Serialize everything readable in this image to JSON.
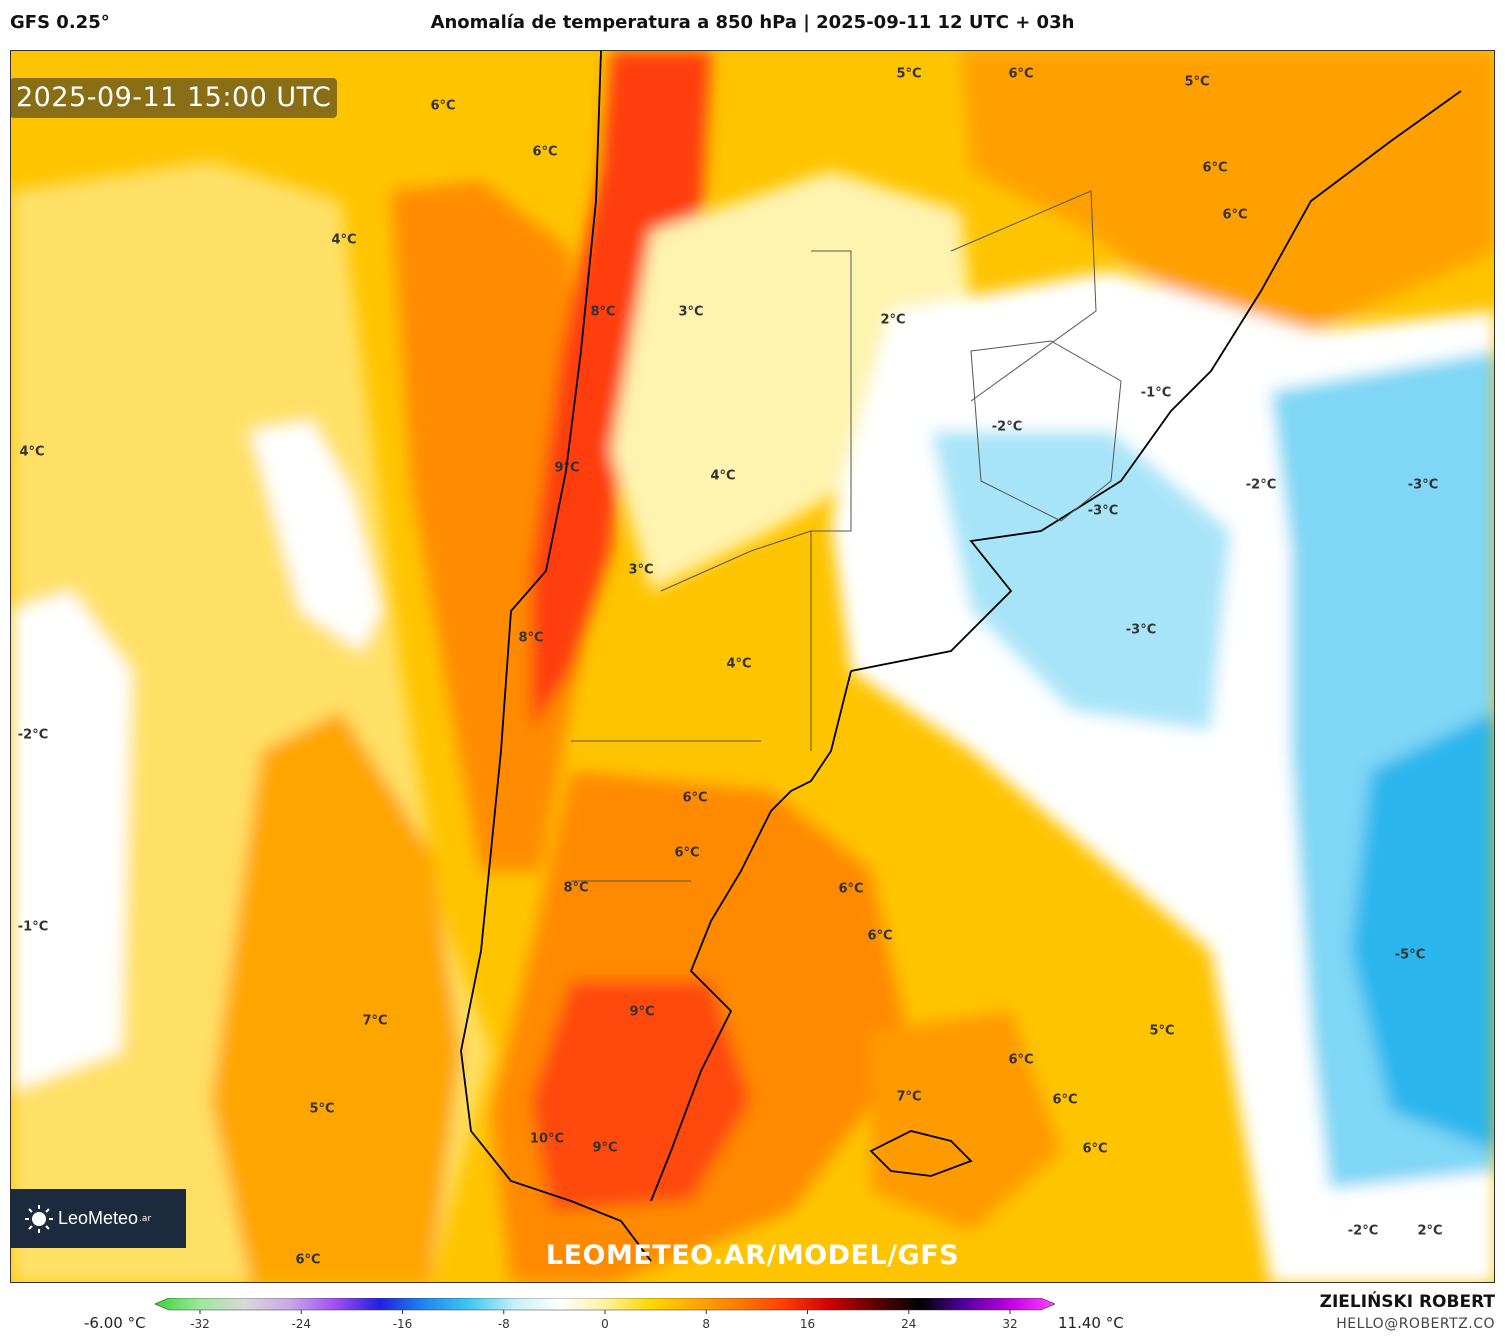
{
  "header": {
    "model": "GFS 0.25°",
    "title": "Anomalía de temperatura a 850 hPa | 2025-09-11 12 UTC + 03h"
  },
  "map": {
    "timestamp": "2025-09-11 15:00 UTC",
    "watermark": "LEOMETEO.AR/MODEL/GFS",
    "logo_text": "LeoMeteo",
    "logo_suffix": ".ar",
    "labels": [
      {
        "text": "6°C"
      },
      {
        "text": "6°C"
      },
      {
        "text": "5°C"
      },
      {
        "text": "6°C"
      },
      {
        "text": "5°C"
      },
      {
        "text": "6°C"
      },
      {
        "text": "6°C"
      },
      {
        "text": "4°C"
      },
      {
        "text": "8°C"
      },
      {
        "text": "3°C"
      },
      {
        "text": "2°C"
      },
      {
        "text": "4°C"
      },
      {
        "text": "9°C"
      },
      {
        "text": "4°C"
      },
      {
        "text": "-2°C"
      },
      {
        "text": "-1°C"
      },
      {
        "text": "-2°C"
      },
      {
        "text": "-3°C"
      },
      {
        "text": "-3°C"
      },
      {
        "text": "3°C"
      },
      {
        "text": "8°C"
      },
      {
        "text": "4°C"
      },
      {
        "text": "-3°C"
      },
      {
        "text": "-2°C"
      },
      {
        "text": "6°C"
      },
      {
        "text": "6°C"
      },
      {
        "text": "8°C"
      },
      {
        "text": "6°C"
      },
      {
        "text": "6°C"
      },
      {
        "text": "-1°C"
      },
      {
        "text": "-5°C"
      },
      {
        "text": "7°C"
      },
      {
        "text": "9°C"
      },
      {
        "text": "5°C"
      },
      {
        "text": "6°C"
      },
      {
        "text": "5°C"
      },
      {
        "text": "7°C"
      },
      {
        "text": "6°C"
      },
      {
        "text": "10°C"
      },
      {
        "text": "9°C"
      },
      {
        "text": "6°C"
      },
      {
        "text": "6°C"
      },
      {
        "text": "-2°C"
      },
      {
        "text": "2°C"
      }
    ]
  },
  "colorbar": {
    "min_label": "-6.00 °C",
    "max_label": "11.40 °C",
    "ticks": [
      "-32",
      "-24",
      "-16",
      "-8",
      "0",
      "8",
      "16",
      "24",
      "32"
    ],
    "colors": [
      "#3ad63a",
      "#9be89b",
      "#d9d9d9",
      "#c8a8e8",
      "#a050f0",
      "#2020e0",
      "#2088f0",
      "#40c8f0",
      "#c8f0f8",
      "#ffffff",
      "#fff2a0",
      "#ffd700",
      "#ffaa00",
      "#ff7a00",
      "#ff3c00",
      "#d00000",
      "#600000",
      "#000000",
      "#5000a0",
      "#c000e0",
      "#ff40ff"
    ]
  },
  "credits": {
    "author": "ZIELIŃSKI ROBERT",
    "email": "HELLO@ROBERTZ.CO"
  }
}
